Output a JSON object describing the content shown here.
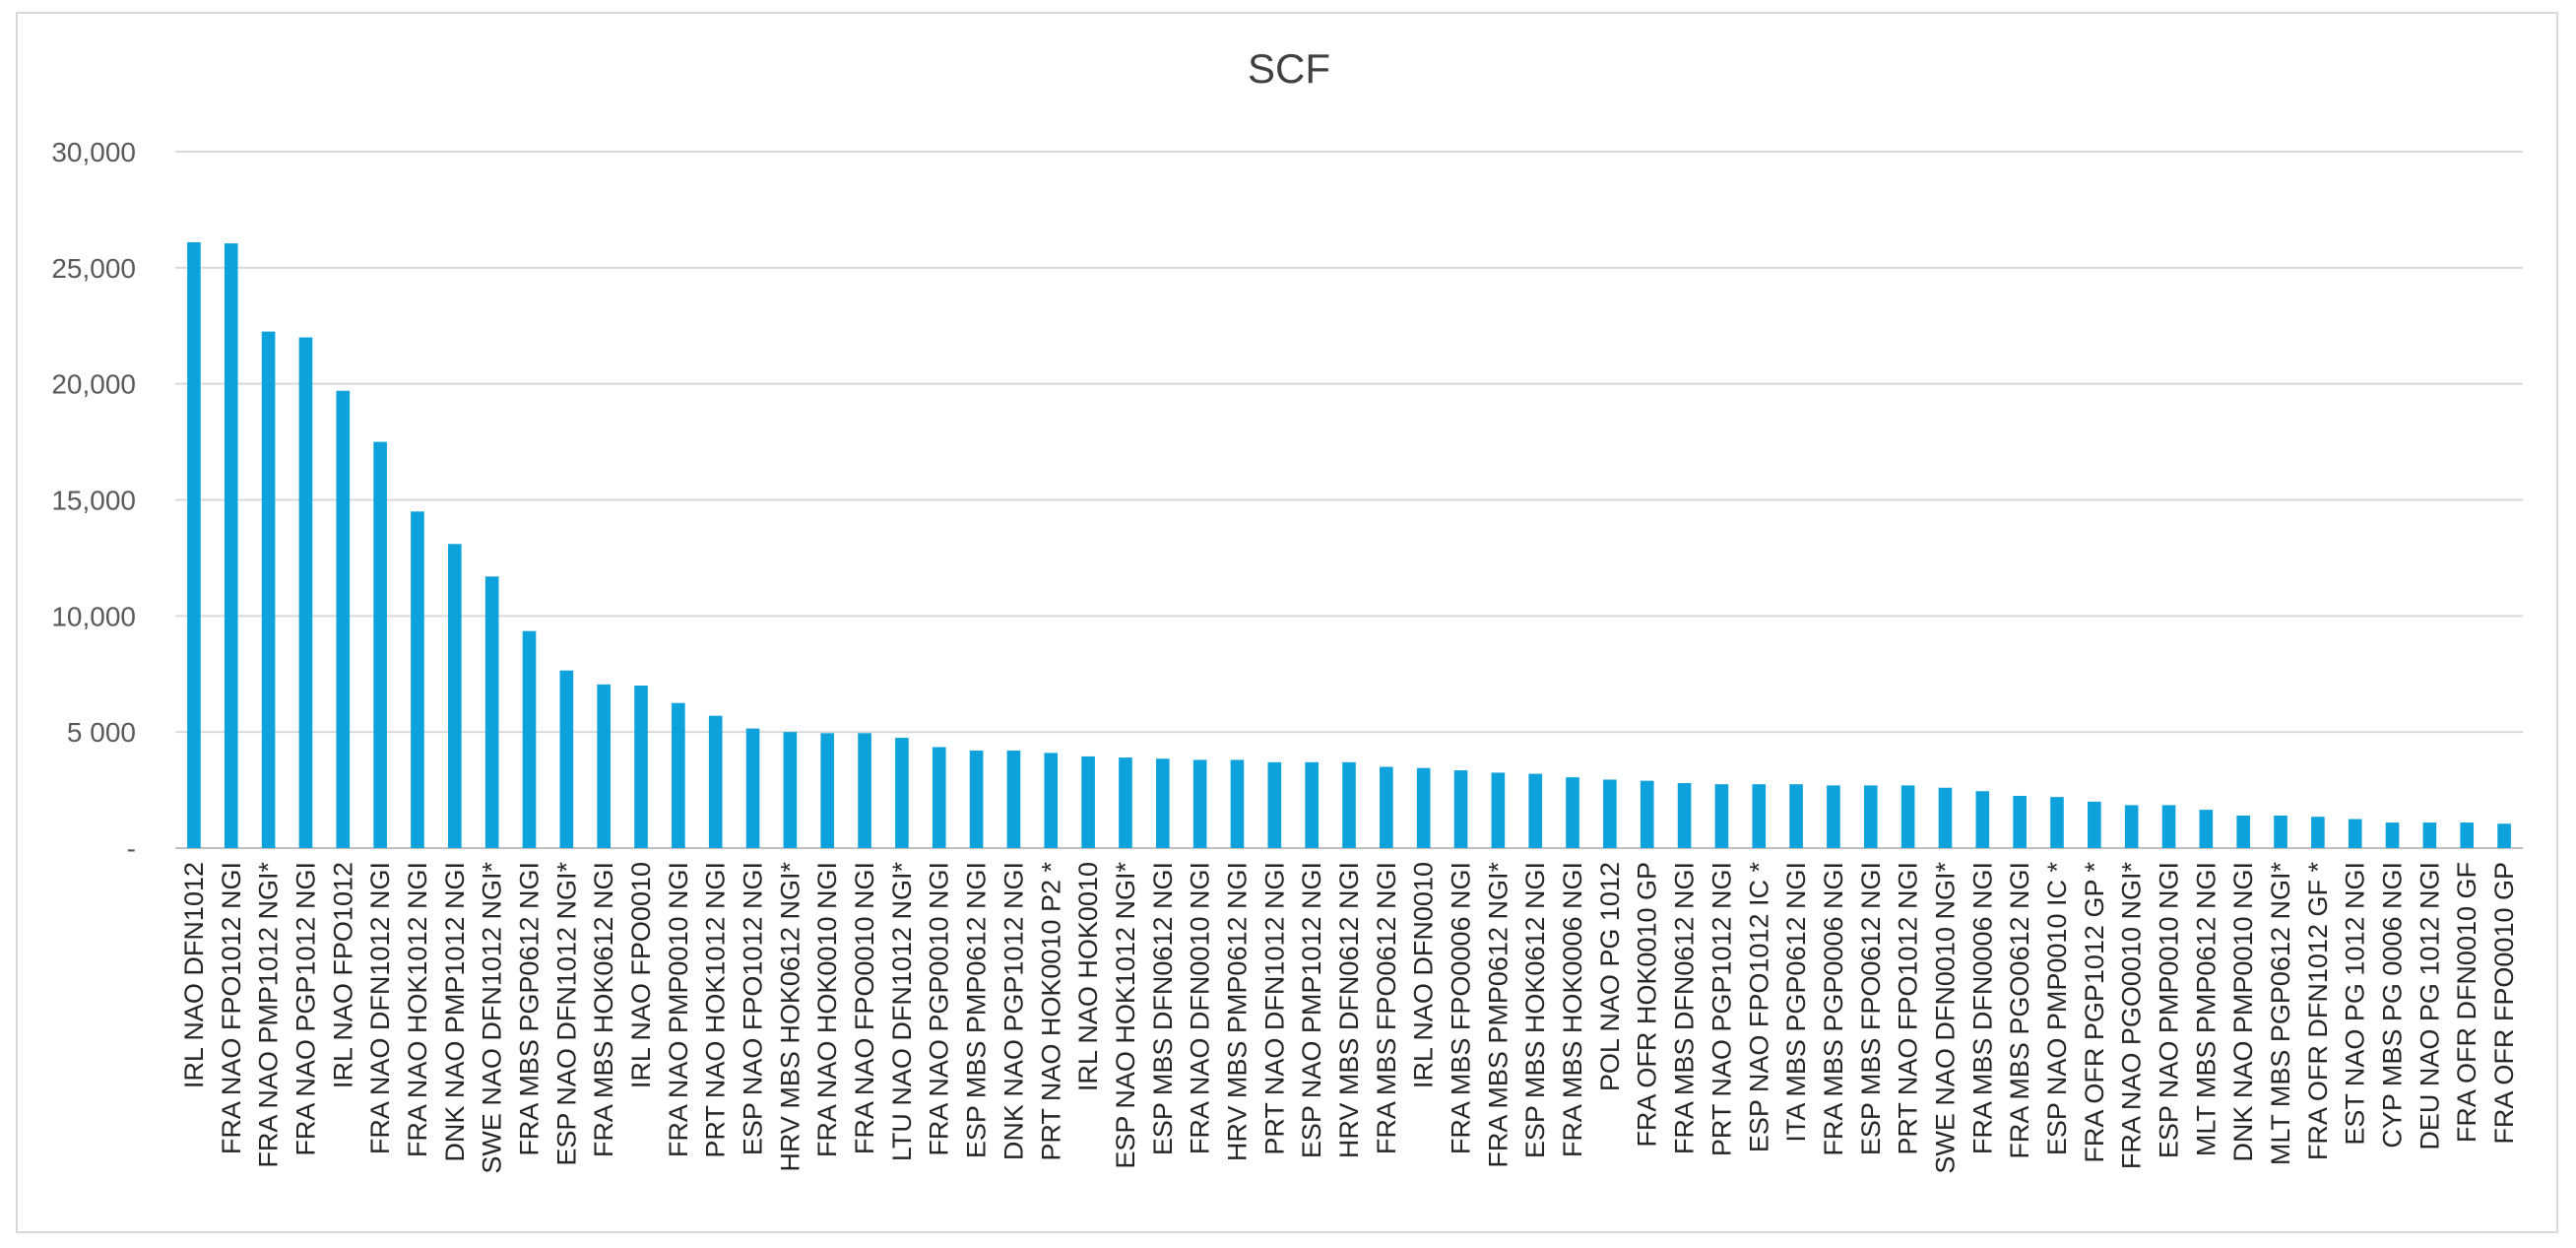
{
  "chart_data": {
    "type": "bar",
    "title": "SCF",
    "xlabel": "",
    "ylabel": "",
    "ylim": [
      0,
      30000
    ],
    "y_ticks": [
      0,
      5000,
      10000,
      15000,
      20000,
      25000,
      30000
    ],
    "y_tick_labels": [
      "-",
      "5 000",
      "10,000",
      "15,000",
      "20,000",
      "25,000",
      "30,000"
    ],
    "grid": true,
    "legend": "none",
    "bar_color": "#0ea2dc",
    "categories": [
      "IRL NAO DFN1012",
      "FRA NAO FPO1012 NGI",
      "FRA NAO PMP1012 NGI*",
      "FRA NAO PGP1012 NGI",
      "IRL NAO FPO1012",
      "FRA NAO DFN1012 NGI",
      "FRA NAO HOK1012 NGI",
      "DNK NAO PMP1012 NGI",
      "SWE NAO DFN1012 NGI*",
      "FRA MBS PGP0612 NGI",
      "ESP NAO DFN1012 NGI*",
      "FRA MBS HOK0612 NGI",
      "IRL NAO FPO0010",
      "FRA NAO PMP0010 NGI",
      "PRT NAO HOK1012 NGI",
      "ESP NAO FPO1012 NGI",
      "HRV MBS HOK0612 NGI*",
      "FRA NAO HOK0010 NGI",
      "FRA NAO FPO0010 NGI",
      "LTU NAO DFN1012 NGI*",
      "FRA NAO PGP0010 NGI",
      "ESP MBS PMP0612 NGI",
      "DNK NAO PGP1012 NGI",
      "PRT NAO HOK0010 P2 *",
      "IRL NAO HOK0010",
      "ESP NAO HOK1012 NGI*",
      "ESP MBS DFN0612 NGI",
      "FRA NAO DFN0010 NGI",
      "HRV MBS PMP0612 NGI",
      "PRT NAO DFN1012 NGI",
      "ESP NAO PMP1012 NGI",
      "HRV MBS DFN0612 NGI",
      "FRA MBS FPO0612 NGI",
      "IRL NAO DFN0010",
      "FRA MBS FPO0006 NGI",
      "FRA MBS PMP0612 NGI*",
      "ESP MBS HOK0612 NGI",
      "FRA MBS HOK0006 NGI",
      "POL NAO PG 1012",
      "FRA OFR HOK0010 GP",
      "FRA MBS DFN0612 NGI",
      "PRT NAO PGP1012 NGI",
      "ESP NAO FPO1012 IC *",
      "ITA MBS PGP0612 NGI",
      "FRA MBS PGP0006 NGI",
      "ESP MBS FPO0612 NGI",
      "PRT NAO FPO1012 NGI",
      "SWE NAO DFN0010 NGI*",
      "FRA MBS DFN0006 NGI",
      "FRA MBS PGO0612 NGI",
      "ESP NAO PMP0010 IC *",
      "FRA OFR PGP1012 GP *",
      "FRA NAO PGO0010 NGI*",
      "ESP NAO PMP0010 NGI",
      "MLT MBS PMP0612 NGI",
      "DNK NAO PMP0010 NGI",
      "MLT MBS PGP0612 NGI*",
      "FRA OFR DFN1012 GF *",
      "EST NAO PG 1012 NGI",
      "CYP MBS PG 0006 NGI",
      "DEU NAO PG 1012 NGI",
      "FRA OFR DFN0010 GF",
      "FRA OFR FPO0010 GP"
    ],
    "values": [
      26100,
      26050,
      22250,
      22000,
      19700,
      17500,
      14500,
      13100,
      11700,
      9350,
      7650,
      7050,
      7000,
      6250,
      5700,
      5150,
      5000,
      4950,
      4950,
      4750,
      4350,
      4200,
      4200,
      4100,
      3950,
      3900,
      3850,
      3800,
      3800,
      3700,
      3700,
      3700,
      3500,
      3450,
      3350,
      3250,
      3200,
      3050,
      2950,
      2900,
      2800,
      2750,
      2750,
      2750,
      2700,
      2700,
      2700,
      2600,
      2450,
      2250,
      2200,
      2000,
      1850,
      1850,
      1650,
      1400,
      1400,
      1350,
      1250,
      1100,
      1100,
      1100,
      1050
    ]
  }
}
